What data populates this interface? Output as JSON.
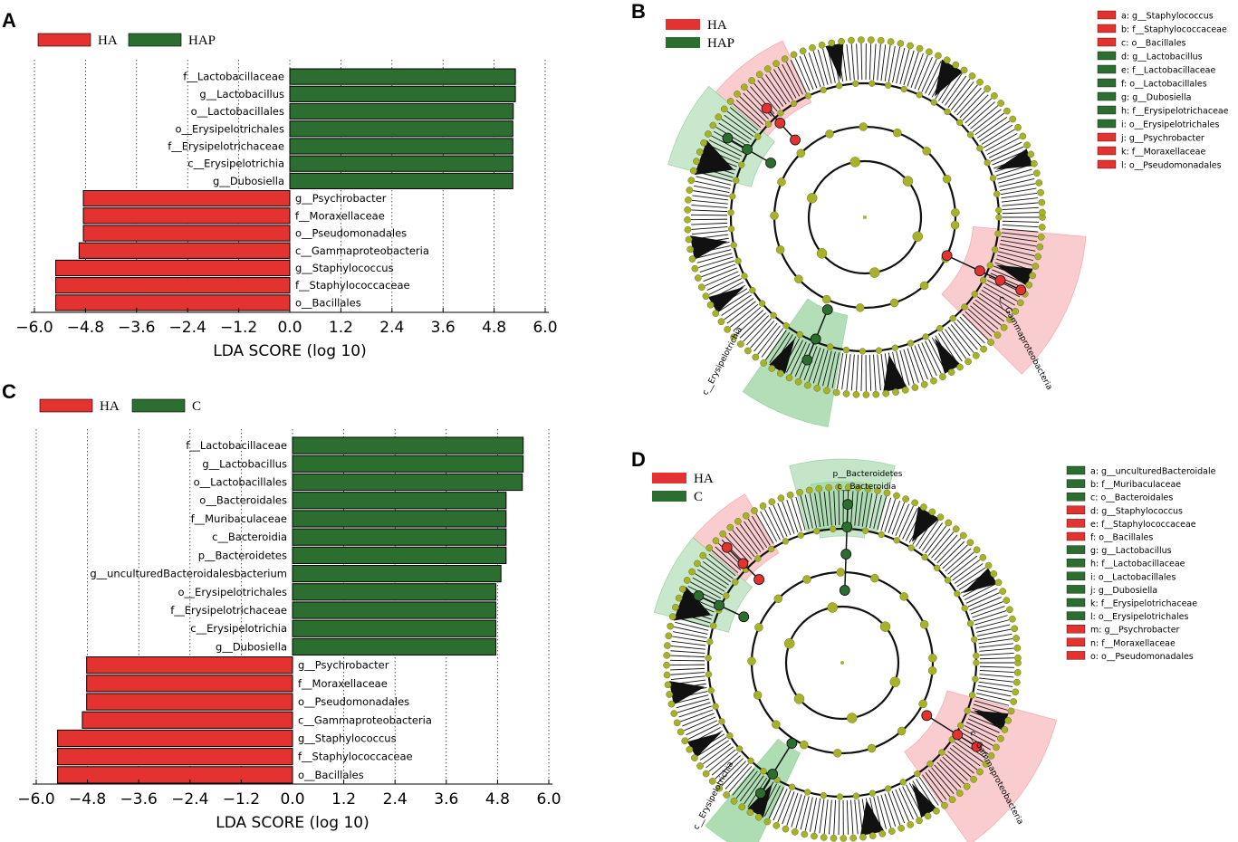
{
  "colors": {
    "red": "#e3322f",
    "green": "#2c6e30",
    "node": "#a7b22a",
    "red_shade": "#f4a3a8",
    "green_shade": "#93d09a"
  },
  "panels": {
    "A": "A",
    "B": "B",
    "C": "C",
    "D": "D"
  },
  "chart_data": [
    {
      "type": "bar",
      "panel": "A",
      "orientation": "horizontal",
      "legend": [
        "HA",
        "HAP"
      ],
      "xlabel": "LDA SCORE (log 10)",
      "xlim": [
        -6.0,
        6.0
      ],
      "ticks": [
        "−6.0",
        "−4.8",
        "−3.6",
        "−2.4",
        "−1.2",
        "0.0",
        "1.2",
        "2.4",
        "3.6",
        "4.8",
        "6.0"
      ],
      "bars": [
        {
          "label": "f__Lactobacillaceae",
          "value": 5.3,
          "group": "HAP"
        },
        {
          "label": "g__Lactobacillus",
          "value": 5.3,
          "group": "HAP"
        },
        {
          "label": "o__Lactobacillales",
          "value": 5.25,
          "group": "HAP"
        },
        {
          "label": "o__Erysipelotrichales",
          "value": 5.24,
          "group": "HAP"
        },
        {
          "label": "f__Erysipelotrichaceae",
          "value": 5.24,
          "group": "HAP"
        },
        {
          "label": "c__Erysipelotrichia",
          "value": 5.24,
          "group": "HAP"
        },
        {
          "label": "g__Dubosiella",
          "value": 5.24,
          "group": "HAP"
        },
        {
          "label": "g__Psychrobacter",
          "value": -4.85,
          "group": "HA"
        },
        {
          "label": "f__Moraxellaceae",
          "value": -4.85,
          "group": "HA"
        },
        {
          "label": "o__Pseudomonadales",
          "value": -4.85,
          "group": "HA"
        },
        {
          "label": "c__Gammaproteobacteria",
          "value": -4.95,
          "group": "HA"
        },
        {
          "label": "g__Staphylococcus",
          "value": -5.5,
          "group": "HA"
        },
        {
          "label": "f__Staphylococcaceae",
          "value": -5.5,
          "group": "HA"
        },
        {
          "label": "o__Bacillales",
          "value": -5.5,
          "group": "HA"
        }
      ]
    },
    {
      "type": "bar",
      "panel": "C",
      "orientation": "horizontal",
      "legend": [
        "HA",
        "C"
      ],
      "xlabel": "LDA SCORE (log 10)",
      "xlim": [
        -6.0,
        6.0
      ],
      "ticks": [
        "−6.0",
        "−4.8",
        "−3.6",
        "−2.4",
        "−1.2",
        "0.0",
        "1.2",
        "2.4",
        "3.6",
        "4.8",
        "6.0"
      ],
      "bars": [
        {
          "label": "f__Lactobacillaceae",
          "value": 5.4,
          "group": "C"
        },
        {
          "label": "g__Lactobacillus",
          "value": 5.4,
          "group": "C"
        },
        {
          "label": "o__Lactobacillales",
          "value": 5.38,
          "group": "C"
        },
        {
          "label": "o__Bacteroidales",
          "value": 5.0,
          "group": "C"
        },
        {
          "label": "f__Muribaculaceae",
          "value": 5.0,
          "group": "C"
        },
        {
          "label": "c__Bacteroidia",
          "value": 5.0,
          "group": "C"
        },
        {
          "label": "p__Bacteroidetes",
          "value": 5.0,
          "group": "C"
        },
        {
          "label": "g__unculturedBacteroidalesbacterium",
          "value": 4.88,
          "group": "C"
        },
        {
          "label": "o__Erysipelotrichales",
          "value": 4.76,
          "group": "C"
        },
        {
          "label": "f__Erysipelotrichaceae",
          "value": 4.76,
          "group": "C"
        },
        {
          "label": "c__Erysipelotrichia",
          "value": 4.76,
          "group": "C"
        },
        {
          "label": "g__Dubosiella",
          "value": 4.76,
          "group": "C"
        },
        {
          "label": "g__Psychrobacter",
          "value": -4.82,
          "group": "HA"
        },
        {
          "label": "f__Moraxellaceae",
          "value": -4.82,
          "group": "HA"
        },
        {
          "label": "o__Pseudomonadales",
          "value": -4.82,
          "group": "HA"
        },
        {
          "label": "c__Gammaproteobacteria",
          "value": -4.92,
          "group": "HA"
        },
        {
          "label": "g__Staphylococcus",
          "value": -5.5,
          "group": "HA"
        },
        {
          "label": "f__Staphylococcaceae",
          "value": -5.5,
          "group": "HA"
        },
        {
          "label": "o__Bacillales",
          "value": -5.5,
          "group": "HA"
        }
      ]
    },
    {
      "type": "cladogram",
      "panel": "B",
      "legend": [
        "HA",
        "HAP"
      ],
      "items": [
        {
          "text": "a: g__Staphylococcus",
          "group": "HA"
        },
        {
          "text": "b: f__Staphylococcaceae",
          "group": "HA"
        },
        {
          "text": "c: o__Bacillales",
          "group": "HA"
        },
        {
          "text": "d: g__Lactobacillus",
          "group": "HAP"
        },
        {
          "text": "e: f__Lactobacillaceae",
          "group": "HAP"
        },
        {
          "text": "f: o__Lactobacillales",
          "group": "HAP"
        },
        {
          "text": "g: g__Dubosiella",
          "group": "HAP"
        },
        {
          "text": "h: f__Erysipelotrichaceae",
          "group": "HAP"
        },
        {
          "text": "i: o__Erysipelotrichales",
          "group": "HAP"
        },
        {
          "text": "j: g__Psychrobacter",
          "group": "HA"
        },
        {
          "text": "k: f__Moraxellaceae",
          "group": "HA"
        },
        {
          "text": "l: o__Pseudomonadales",
          "group": "HA"
        }
      ],
      "sector_labels": [
        "c__Gammaproteobacteria",
        "c__Erysipelotrichia"
      ]
    },
    {
      "type": "cladogram",
      "panel": "D",
      "legend": [
        "HA",
        "C"
      ],
      "items": [
        {
          "text": "a: g__unculturedBacteroidale",
          "group": "C"
        },
        {
          "text": "b: f__Muribaculaceae",
          "group": "C"
        },
        {
          "text": "c: o__Bacteroidales",
          "group": "C"
        },
        {
          "text": "d: g__Staphylococcus",
          "group": "HA"
        },
        {
          "text": "e: f__Staphylococcaceae",
          "group": "HA"
        },
        {
          "text": "f: o__Bacillales",
          "group": "HA"
        },
        {
          "text": "g: g__Lactobacillus",
          "group": "C"
        },
        {
          "text": "h: f__Lactobacillaceae",
          "group": "C"
        },
        {
          "text": "i: o__Lactobacillales",
          "group": "C"
        },
        {
          "text": "j: g__Dubosiella",
          "group": "C"
        },
        {
          "text": "k: f__Erysipelotrichaceae",
          "group": "C"
        },
        {
          "text": "l: o__Erysipelotrichales",
          "group": "C"
        },
        {
          "text": "m: g__Psychrobacter",
          "group": "HA"
        },
        {
          "text": "n: f__Moraxellaceae",
          "group": "HA"
        },
        {
          "text": "o: o__Pseudomonadales",
          "group": "HA"
        }
      ],
      "sector_labels": [
        "p__Bacteroidetes",
        "c__Bacteroidia",
        "c__Gammaproteobacteria",
        "c__Erysipelotrichia"
      ]
    }
  ]
}
